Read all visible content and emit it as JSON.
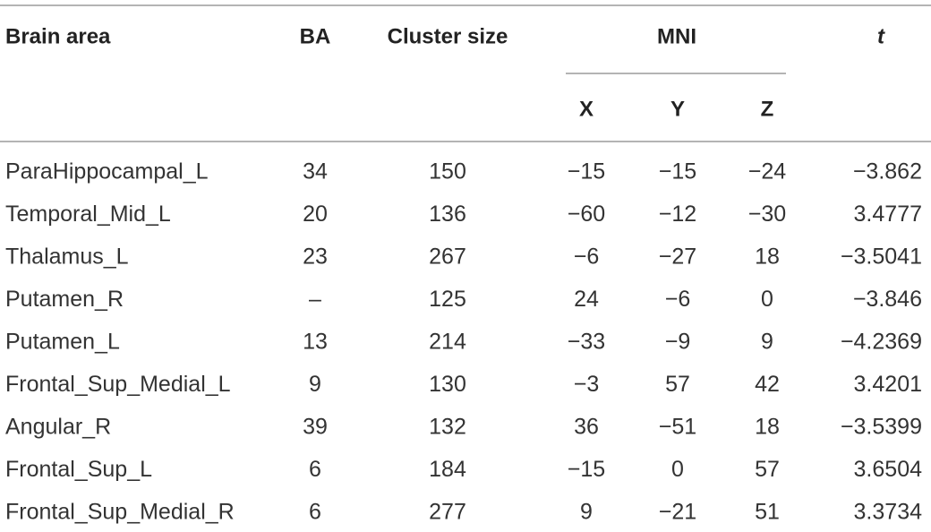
{
  "header": {
    "columns": [
      "Brain area",
      "BA",
      "Cluster size",
      "MNI",
      "t"
    ],
    "subcolumns": [
      "X",
      "Y",
      "Z"
    ]
  },
  "table": {
    "rows": [
      [
        "ParaHippocampal_L",
        "34",
        "150",
        "−15",
        "−15",
        "−24",
        "−3.862"
      ],
      [
        "Temporal_Mid_L",
        "20",
        "136",
        "−60",
        "−12",
        "−30",
        "3.4777"
      ],
      [
        "Thalamus_L",
        "23",
        "267",
        "−6",
        "−27",
        "18",
        "−3.5041"
      ],
      [
        "Putamen_R",
        "–",
        "125",
        "24",
        "−6",
        "0",
        "−3.846"
      ],
      [
        "Putamen_L",
        "13",
        "214",
        "−33",
        "−9",
        "9",
        "−4.2369"
      ],
      [
        "Frontal_Sup_Medial_L",
        "9",
        "130",
        "−3",
        "57",
        "42",
        "3.4201"
      ],
      [
        "Angular_R",
        "39",
        "132",
        "36",
        "−51",
        "18",
        "−3.5399"
      ],
      [
        "Frontal_Sup_L",
        "6",
        "184",
        "−15",
        "0",
        "57",
        "3.6504"
      ],
      [
        "Frontal_Sup_Medial_R",
        "6",
        "277",
        "9",
        "−21",
        "51",
        "3.3734"
      ]
    ]
  }
}
